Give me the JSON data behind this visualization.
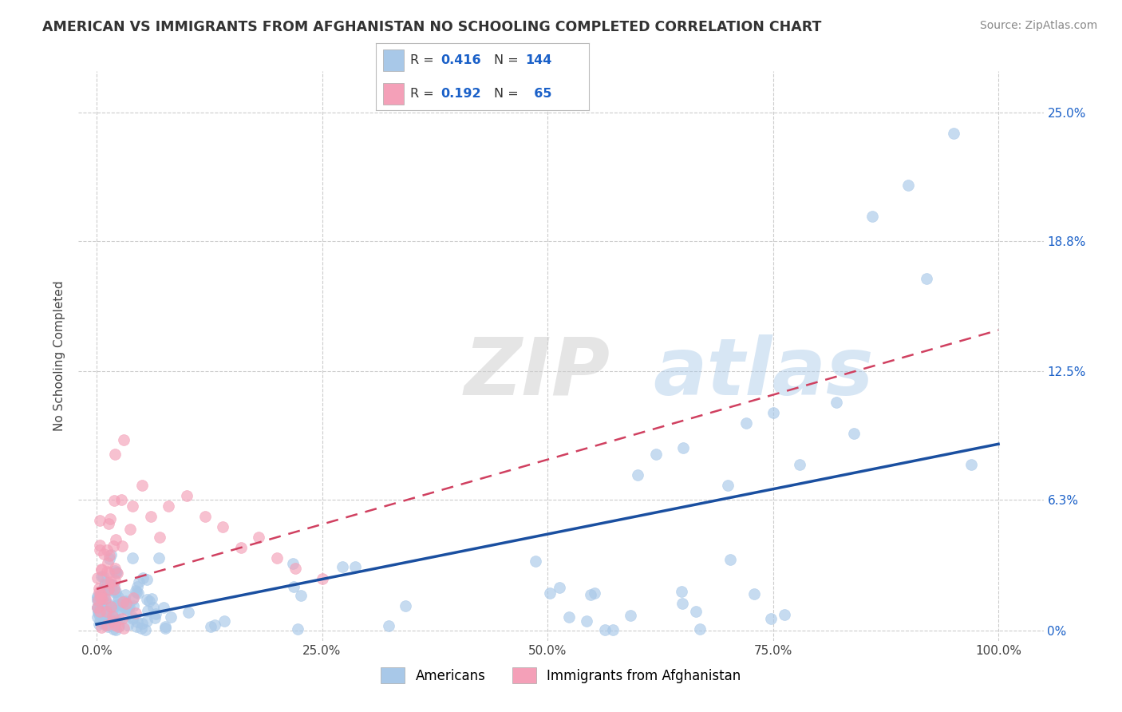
{
  "title": "AMERICAN VS IMMIGRANTS FROM AFGHANISTAN NO SCHOOLING COMPLETED CORRELATION CHART",
  "source": "Source: ZipAtlas.com",
  "ylabel": "No Schooling Completed",
  "xlabel": "",
  "legend_label1": "Americans",
  "legend_label2": "Immigrants from Afghanistan",
  "r1": 0.416,
  "n1": 144,
  "r2": 0.192,
  "n2": 65,
  "color1": "#a8c8e8",
  "color2": "#f4a0b8",
  "line_color1": "#1a4fa0",
  "line_color2": "#d04060",
  "ytick_labels": [
    "0%",
    "6.3%",
    "12.5%",
    "18.8%",
    "25.0%"
  ],
  "ytick_values": [
    0.0,
    0.063,
    0.125,
    0.188,
    0.25
  ],
  "xtick_labels": [
    "0.0%",
    "25.0%",
    "50.0%",
    "75.0%",
    "100.0%"
  ],
  "xtick_values": [
    0.0,
    0.25,
    0.5,
    0.75,
    1.0
  ],
  "xlim": [
    -0.02,
    1.05
  ],
  "ylim": [
    -0.005,
    0.27
  ],
  "watermark_zip": "ZIP",
  "watermark_atlas": "atlas",
  "background_color": "#ffffff",
  "grid_color": "#cccccc",
  "trend1_x": [
    0.0,
    1.0
  ],
  "trend1_y": [
    0.003,
    0.09
  ],
  "trend2_x": [
    0.0,
    1.0
  ],
  "trend2_y": [
    0.02,
    0.145
  ]
}
